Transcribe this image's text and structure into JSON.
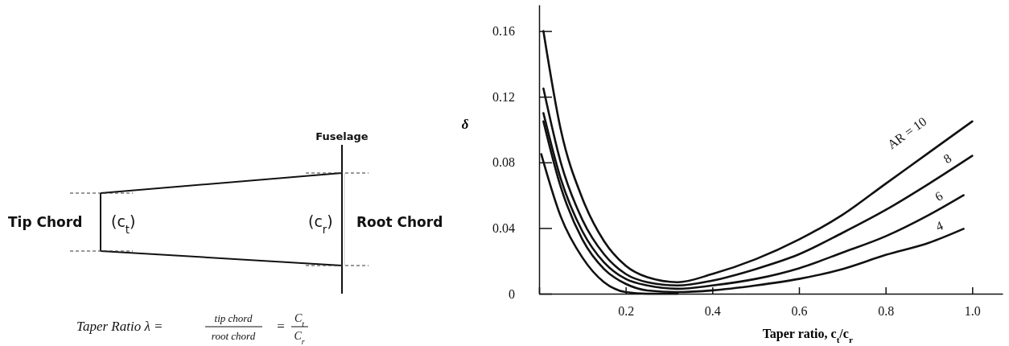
{
  "chart_data": [
    {
      "type": "other",
      "annotations": [
        "Fuselage",
        "Tip Chord",
        "(c$_{t}$)",
        "(c$_{r}$)",
        "Root Chord",
        "Taper Ratio λ =",
        "tip chord",
        "root chord",
        "=",
        "C$_{t}$",
        "C$_{r}$"
      ]
    },
    {
      "type": "line",
      "xlabel": "Taper ratio, c$_{t}$/c$_{r}$",
      "ylabel": "δ",
      "xlim": [
        0,
        1.07
      ],
      "ylim": [
        0,
        0.176
      ],
      "xticks": [
        {
          "value": 0,
          "label": null
        },
        0.2,
        0.4,
        0.6,
        0.8,
        {
          "value": 1,
          "label": "1.0"
        }
      ],
      "yticks": [
        0,
        0.04,
        0.08,
        0.12,
        0.16
      ],
      "grid": false,
      "legend": false,
      "marker": "none",
      "line_style": "solid",
      "series": [
        {
          "name": "AR = 10",
          "color": "#111111",
          "x": [
            0.01,
            0.05,
            0.1,
            0.15,
            0.2,
            0.25,
            0.32,
            0.4,
            0.5,
            0.6,
            0.7,
            0.8,
            0.9,
            1.0
          ],
          "values": [
            0.16,
            0.1,
            0.058,
            0.032,
            0.017,
            0.01,
            0.007,
            0.012,
            0.021,
            0.033,
            0.048,
            0.067,
            0.086,
            0.105
          ]
        },
        {
          "name": "8",
          "color": "#111111",
          "x": [
            0.01,
            0.05,
            0.1,
            0.15,
            0.2,
            0.25,
            0.32,
            0.4,
            0.5,
            0.6,
            0.7,
            0.8,
            0.9,
            1.0
          ],
          "values": [
            0.125,
            0.08,
            0.045,
            0.024,
            0.012,
            0.007,
            0.005,
            0.008,
            0.015,
            0.024,
            0.037,
            0.051,
            0.067,
            0.084
          ]
        },
        {
          "name": "6",
          "color": "#111111",
          "x": [
            0.01,
            0.05,
            0.1,
            0.15,
            0.2,
            0.25,
            0.32,
            0.4,
            0.5,
            0.6,
            0.7,
            0.8,
            0.9,
            0.98
          ],
          "values": [
            0.11,
            0.07,
            0.038,
            0.019,
            0.009,
            0.005,
            0.003,
            0.005,
            0.009,
            0.0155,
            0.025,
            0.035,
            0.048,
            0.06
          ]
        },
        {
          "name": "4",
          "color": "#111111",
          "x": [
            0.01,
            0.05,
            0.1,
            0.15,
            0.2,
            0.25,
            0.32,
            0.4,
            0.5,
            0.6,
            0.7,
            0.8,
            0.9,
            0.98
          ],
          "values": [
            0.105,
            0.065,
            0.033,
            0.015,
            0.006,
            0.002,
            0.001,
            0.002,
            0.005,
            0.009,
            0.015,
            0.0236,
            0.031,
            0.0395
          ]
        },
        {
          "color": "#111111",
          "x": [
            0.005,
            0.05,
            0.1,
            0.15,
            0.2,
            0.25,
            0.32
          ],
          "values": [
            0.085,
            0.047,
            0.022,
            0.007,
            0.001,
            0,
            0
          ]
        }
      ]
    }
  ]
}
